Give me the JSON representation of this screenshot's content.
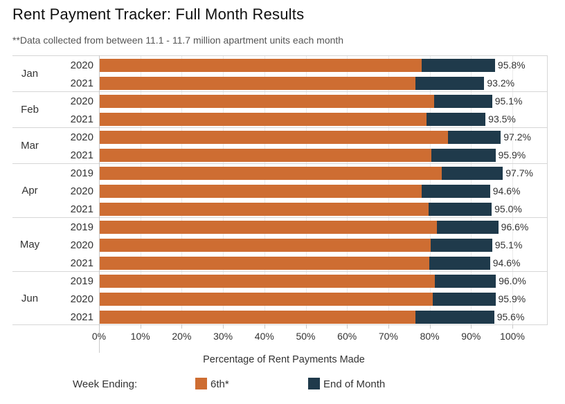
{
  "header": {
    "title": "Rent Payment Tracker: Full Month Results",
    "subtitle": "**Data collected from between 11.1 - 11.7 million apartment units each month"
  },
  "legend": {
    "title": "Week Ending:"
  },
  "chart_data": {
    "type": "bar",
    "orientation": "horizontal",
    "stacked": true,
    "title": "Rent Payment Tracker: Full Month Results",
    "xlabel": "Percentage of Rent Payments Made",
    "xlim": [
      0,
      100
    ],
    "x_ticks": [
      "0%",
      "10%",
      "20%",
      "30%",
      "40%",
      "50%",
      "60%",
      "70%",
      "80%",
      "90%",
      "100%"
    ],
    "grid": true,
    "legend_position": "bottom",
    "series": [
      {
        "name": "6th*",
        "color": "#CE6D32"
      },
      {
        "name": "End of Month",
        "color": "#1F3A4B"
      }
    ],
    "groups": [
      {
        "month": "Jan",
        "rows": [
          {
            "year": "2020",
            "by_6th": 78.1,
            "total": 95.8,
            "total_label": "95.8%"
          },
          {
            "year": "2021",
            "by_6th": 76.6,
            "total": 93.2,
            "total_label": "93.2%"
          }
        ]
      },
      {
        "month": "Feb",
        "rows": [
          {
            "year": "2020",
            "by_6th": 81.0,
            "total": 95.1,
            "total_label": "95.1%"
          },
          {
            "year": "2021",
            "by_6th": 79.2,
            "total": 93.5,
            "total_label": "93.5%"
          }
        ]
      },
      {
        "month": "Mar",
        "rows": [
          {
            "year": "2020",
            "by_6th": 84.5,
            "total": 97.2,
            "total_label": "97.2%"
          },
          {
            "year": "2021",
            "by_6th": 80.4,
            "total": 95.9,
            "total_label": "95.9%"
          }
        ]
      },
      {
        "month": "Apr",
        "rows": [
          {
            "year": "2019",
            "by_6th": 82.9,
            "total": 97.7,
            "total_label": "97.7%"
          },
          {
            "year": "2020",
            "by_6th": 78.0,
            "total": 94.6,
            "total_label": "94.6%"
          },
          {
            "year": "2021",
            "by_6th": 79.8,
            "total": 95.0,
            "total_label": "95.0%"
          }
        ]
      },
      {
        "month": "May",
        "rows": [
          {
            "year": "2019",
            "by_6th": 81.7,
            "total": 96.6,
            "total_label": "96.6%"
          },
          {
            "year": "2020",
            "by_6th": 80.2,
            "total": 95.1,
            "total_label": "95.1%"
          },
          {
            "year": "2021",
            "by_6th": 79.9,
            "total": 94.6,
            "total_label": "94.6%"
          }
        ]
      },
      {
        "month": "Jun",
        "rows": [
          {
            "year": "2019",
            "by_6th": 81.3,
            "total": 96.0,
            "total_label": "96.0%"
          },
          {
            "year": "2020",
            "by_6th": 80.8,
            "total": 95.9,
            "total_label": "95.9%"
          },
          {
            "year": "2021",
            "by_6th": 76.5,
            "total": 95.6,
            "total_label": "95.6%"
          }
        ]
      }
    ]
  }
}
